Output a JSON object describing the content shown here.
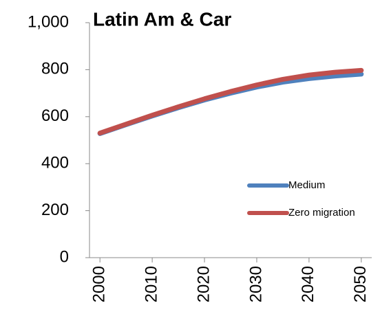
{
  "chart_data": {
    "type": "line",
    "title": "Latin Am & Car",
    "x": [
      2000,
      2005,
      2010,
      2015,
      2020,
      2025,
      2030,
      2035,
      2040,
      2045,
      2050
    ],
    "series": [
      {
        "name": "Medium",
        "color": "#4f81bd",
        "values": [
          528,
          566,
          603,
          638,
          671,
          700,
          726,
          747,
          762,
          773,
          781
        ]
      },
      {
        "name": "Zero migration",
        "color": "#c0504d",
        "values": [
          530,
          568,
          606,
          642,
          676,
          707,
          735,
          759,
          777,
          789,
          797
        ]
      }
    ],
    "xlim": [
      1998,
      2052
    ],
    "xticks": [
      2000,
      2010,
      2020,
      2030,
      2040,
      2050
    ],
    "ylim": [
      0,
      1000
    ],
    "yticks": [
      0,
      200,
      400,
      600,
      800,
      {
        "value": 1000,
        "label": "1,000"
      }
    ],
    "legend": "right",
    "grid": false
  }
}
